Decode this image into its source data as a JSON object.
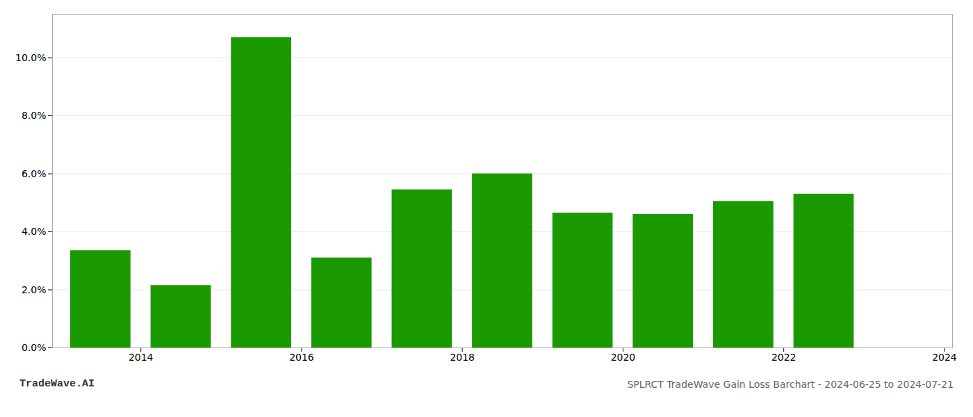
{
  "chart_data": {
    "type": "bar",
    "title": "SPLRCT TradeWave Gain Loss Barchart - 2024-06-25 to 2024-07-21",
    "annotations": [
      "TradeWave.AI"
    ],
    "x": [
      2014,
      2015,
      2016,
      2017,
      2018,
      2019,
      2020,
      2021,
      2022,
      2023
    ],
    "values": [
      0.0335,
      0.0215,
      0.107,
      0.031,
      0.0545,
      0.06,
      0.0465,
      0.046,
      0.0505,
      0.053
    ],
    "color": "#1a9a00",
    "xlim": [
      2013.4,
      2024.6
    ],
    "xticks": [
      {
        "value": 2014.5,
        "label": "2014"
      },
      {
        "value": 2016.5,
        "label": "2016"
      },
      {
        "value": 2018.5,
        "label": "2018"
      },
      {
        "value": 2020.5,
        "label": "2020"
      },
      {
        "value": 2022.5,
        "label": "2022"
      },
      {
        "value": 2024.5,
        "label": "2024"
      }
    ],
    "ylim": [
      0,
      0.115
    ],
    "yticks": [
      {
        "value": 0.0,
        "label": "0.0%"
      },
      {
        "value": 0.02,
        "label": "2.0%"
      },
      {
        "value": 0.04,
        "label": "4.0%"
      },
      {
        "value": 0.06,
        "label": "6.0%"
      },
      {
        "value": 0.08,
        "label": "8.0%"
      },
      {
        "value": 0.1,
        "label": "10.0%"
      }
    ],
    "grid": true
  }
}
